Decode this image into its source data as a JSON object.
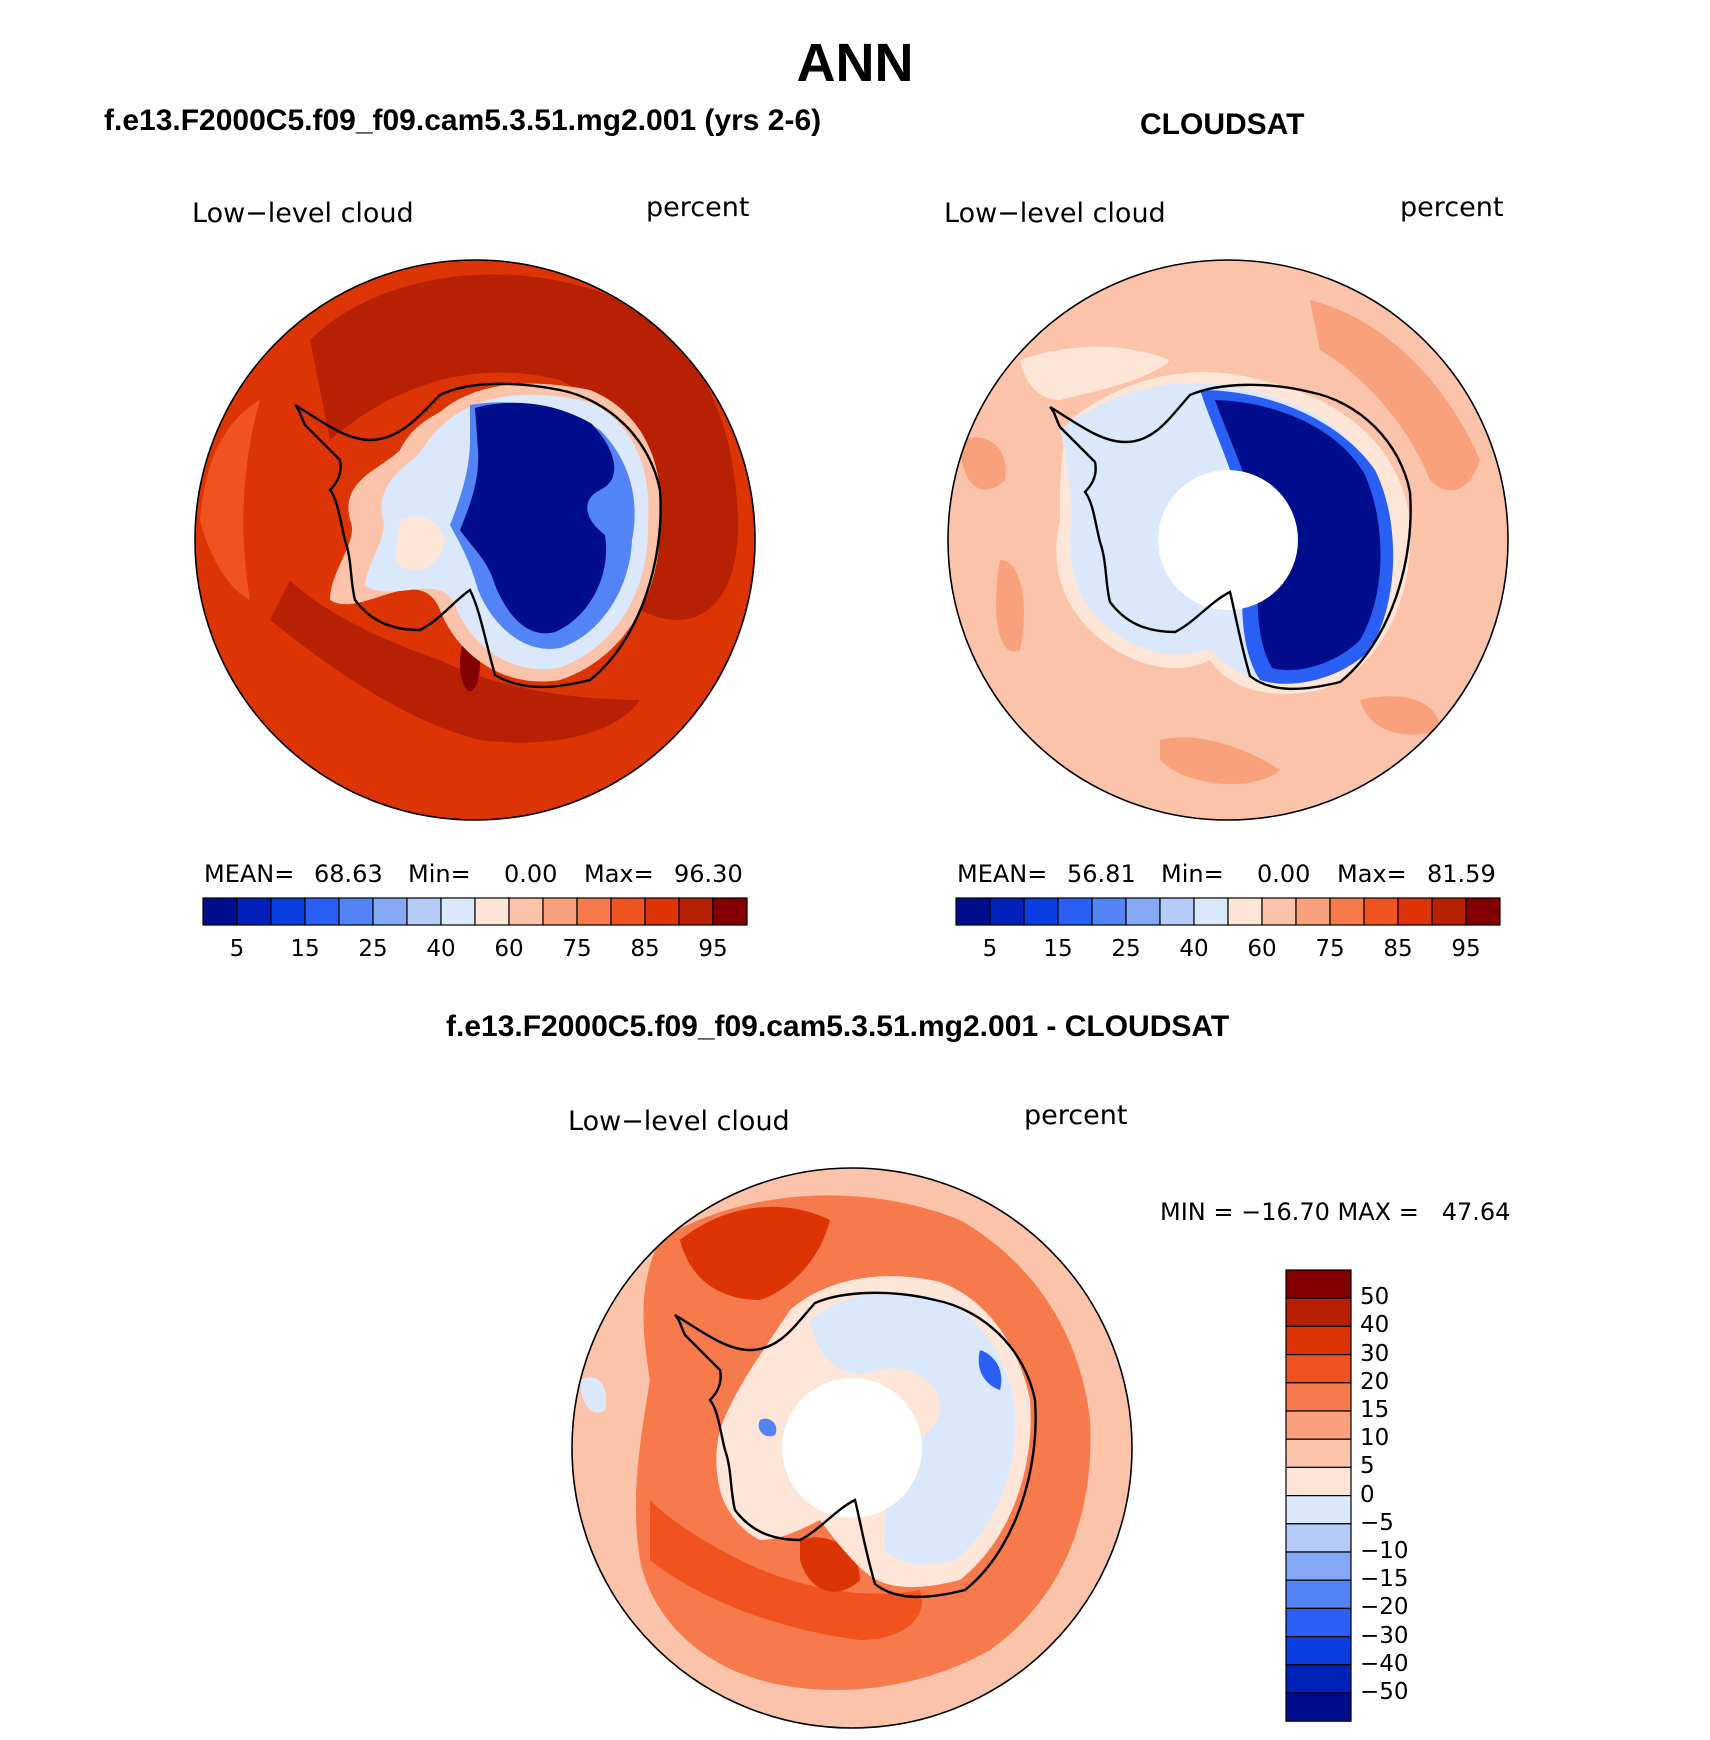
{
  "season_title": "ANN",
  "panels": {
    "model": {
      "title": "f.e13.F2000C5.f09_f09.cam5.3.51.mg2.001 (yrs 2-6)",
      "field_label": "Low−level cloud",
      "units_label": "percent",
      "stats": {
        "mean_label": "MEAN=",
        "mean": "68.63",
        "min_label": "Min=",
        "min": "0.00",
        "max_label": "Max=",
        "max": "96.30"
      },
      "colorbar_ticks": [
        "5",
        "15",
        "25",
        "40",
        "60",
        "75",
        "85",
        "95"
      ]
    },
    "obs": {
      "title": "CLOUDSAT",
      "field_label": "Low−level cloud",
      "units_label": "percent",
      "stats": {
        "mean_label": "MEAN=",
        "mean": "56.81",
        "min_label": "Min=",
        "min": "0.00",
        "max_label": "Max=",
        "max": "81.59"
      },
      "colorbar_ticks": [
        "5",
        "15",
        "25",
        "40",
        "60",
        "75",
        "85",
        "95"
      ]
    },
    "diff": {
      "title": "f.e13.F2000C5.f09_f09.cam5.3.51.mg2.001 - CLOUDSAT",
      "field_label": "Low−level cloud",
      "units_label": "percent",
      "stats_text": "MIN = −16.70 MAX =   47.64",
      "colorbar_ticks": [
        "50",
        "40",
        "30",
        "20",
        "15",
        "10",
        "5",
        "0",
        "−5",
        "−10",
        "−15",
        "−20",
        "−30",
        "−40",
        "−50"
      ]
    }
  },
  "palettes": {
    "abs": [
      "#000e8e",
      "#0022b8",
      "#0a3ee0",
      "#2a5ff5",
      "#5384f5",
      "#85a8f5",
      "#b5cbf8",
      "#dbe8fb",
      "#fde6d7",
      "#fbc4aa",
      "#f9a07c",
      "#f77a4d",
      "#f0531f",
      "#dd3406",
      "#b72002",
      "#820000"
    ],
    "diff": [
      "#000e8e",
      "#0022b8",
      "#0a3ee0",
      "#2a5ff5",
      "#5384f5",
      "#85a8f5",
      "#b5cbf8",
      "#dbe8fb",
      "#fde6d7",
      "#fbc4aa",
      "#f9a07c",
      "#f77a4d",
      "#f0531f",
      "#dd3406",
      "#b72002",
      "#820000"
    ]
  }
}
